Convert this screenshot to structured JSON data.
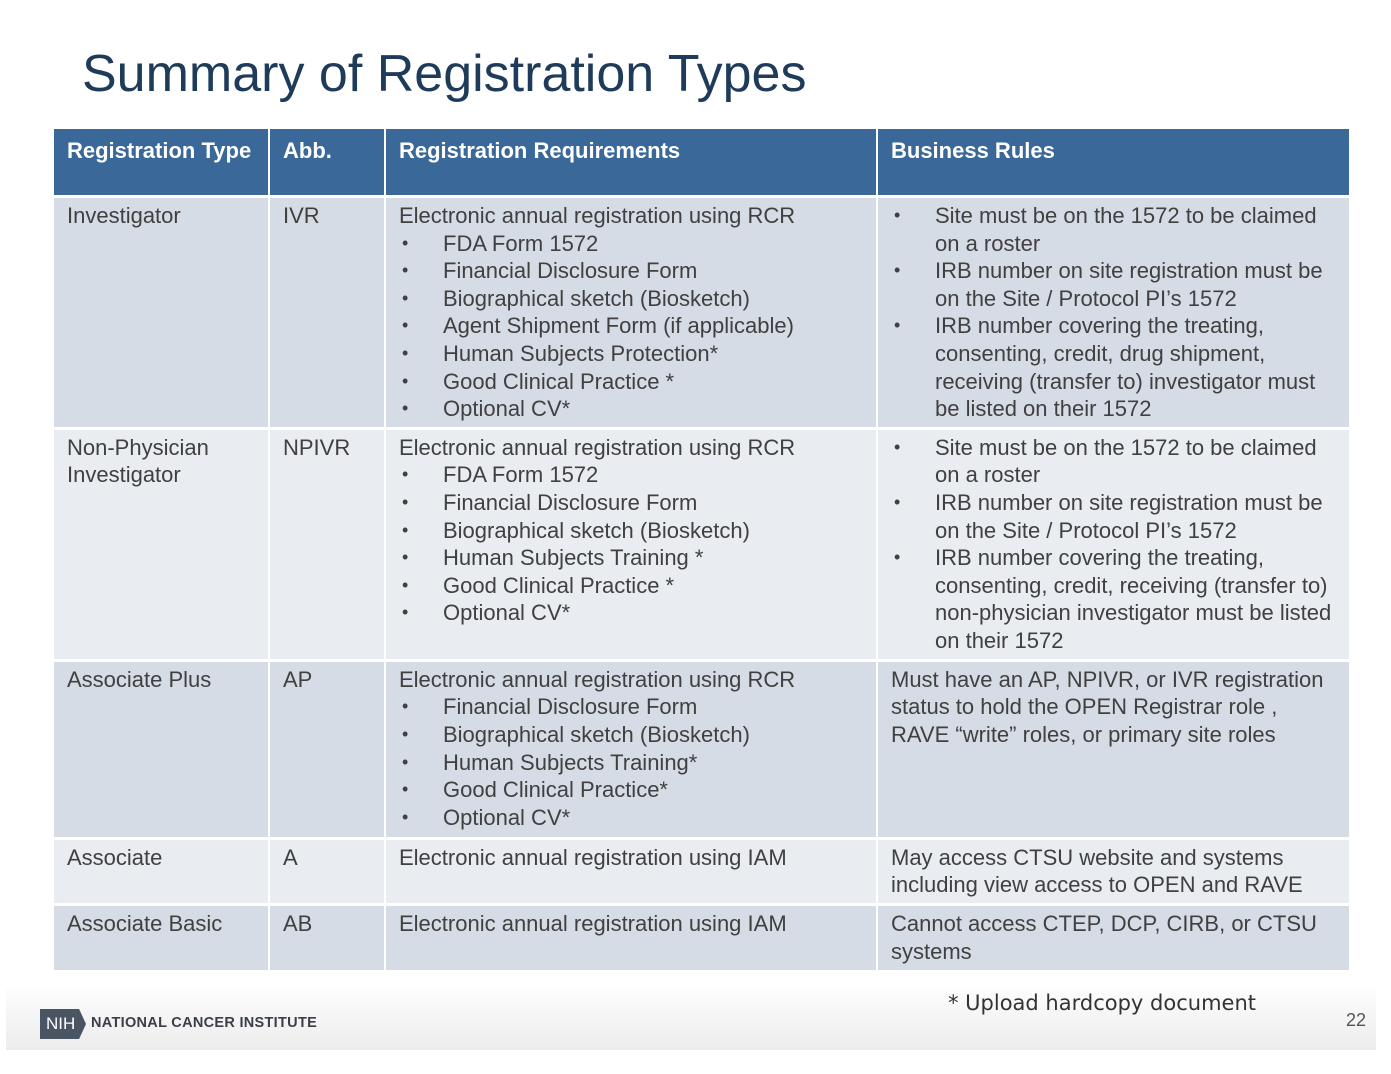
{
  "title": "Summary of Registration Types",
  "table": {
    "headers": [
      "Registration Type",
      "Abb.",
      "Registration Requirements",
      "Business Rules"
    ],
    "rows": [
      {
        "type": "Investigator",
        "abb": "IVR",
        "requirements": {
          "intro": "Electronic annual registration using RCR",
          "items": [
            "FDA Form 1572",
            "Financial Disclosure Form",
            "Biographical sketch (Biosketch)",
            "Agent Shipment Form (if applicable)",
            "Human Subjects Protection*",
            "Good Clinical Practice *",
            "Optional CV*"
          ]
        },
        "rule_items": [
          "Site must be on the 1572 to be claimed on a roster",
          "IRB number on site registration must be on the Site / Protocol PI’s 1572",
          "IRB number covering the treating, consenting, credit, drug shipment, receiving (transfer to) investigator must be listed on their 1572"
        ]
      },
      {
        "type": "Non-Physician Investigator",
        "abb": "NPIVR",
        "requirements": {
          "intro": "Electronic annual registration using RCR",
          "items": [
            "FDA Form 1572",
            "Financial Disclosure Form",
            "Biographical sketch (Biosketch)",
            "Human Subjects Training *",
            "Good Clinical Practice *",
            "Optional CV*"
          ]
        },
        "rule_items": [
          "Site must be on the 1572 to be claimed on a roster",
          "IRB number on site registration must be on the Site / Protocol PI’s 1572",
          "IRB number covering the treating, consenting, credit, receiving (transfer to) non-physician investigator must be listed on their 1572"
        ]
      },
      {
        "type": "Associate Plus",
        "abb": "AP",
        "requirements": {
          "intro": "Electronic annual registration using RCR",
          "items": [
            "Financial Disclosure Form",
            "Biographical sketch (Biosketch)",
            "Human Subjects Training*",
            "Good Clinical Practice*",
            "Optional CV*"
          ]
        },
        "rule_text": "Must have an AP, NPIVR, or IVR registration status to hold the OPEN Registrar role , RAVE “write” roles, or primary site roles"
      },
      {
        "type": "Associate",
        "abb": "A",
        "requirements": {
          "intro": "Electronic annual registration using IAM",
          "items": []
        },
        "rule_text": "May access CTSU website and systems including view access to OPEN and RAVE"
      },
      {
        "type": "Associate Basic",
        "abb": "AB",
        "requirements": {
          "intro": "Electronic annual registration using IAM",
          "items": []
        },
        "rule_text": "Cannot access CTEP, DCP, CIRB, or CTSU systems"
      }
    ]
  },
  "footnote": "* Upload hardcopy document",
  "footer": {
    "logo": "NIH",
    "org": "NATIONAL CANCER INSTITUTE",
    "page": "22"
  }
}
